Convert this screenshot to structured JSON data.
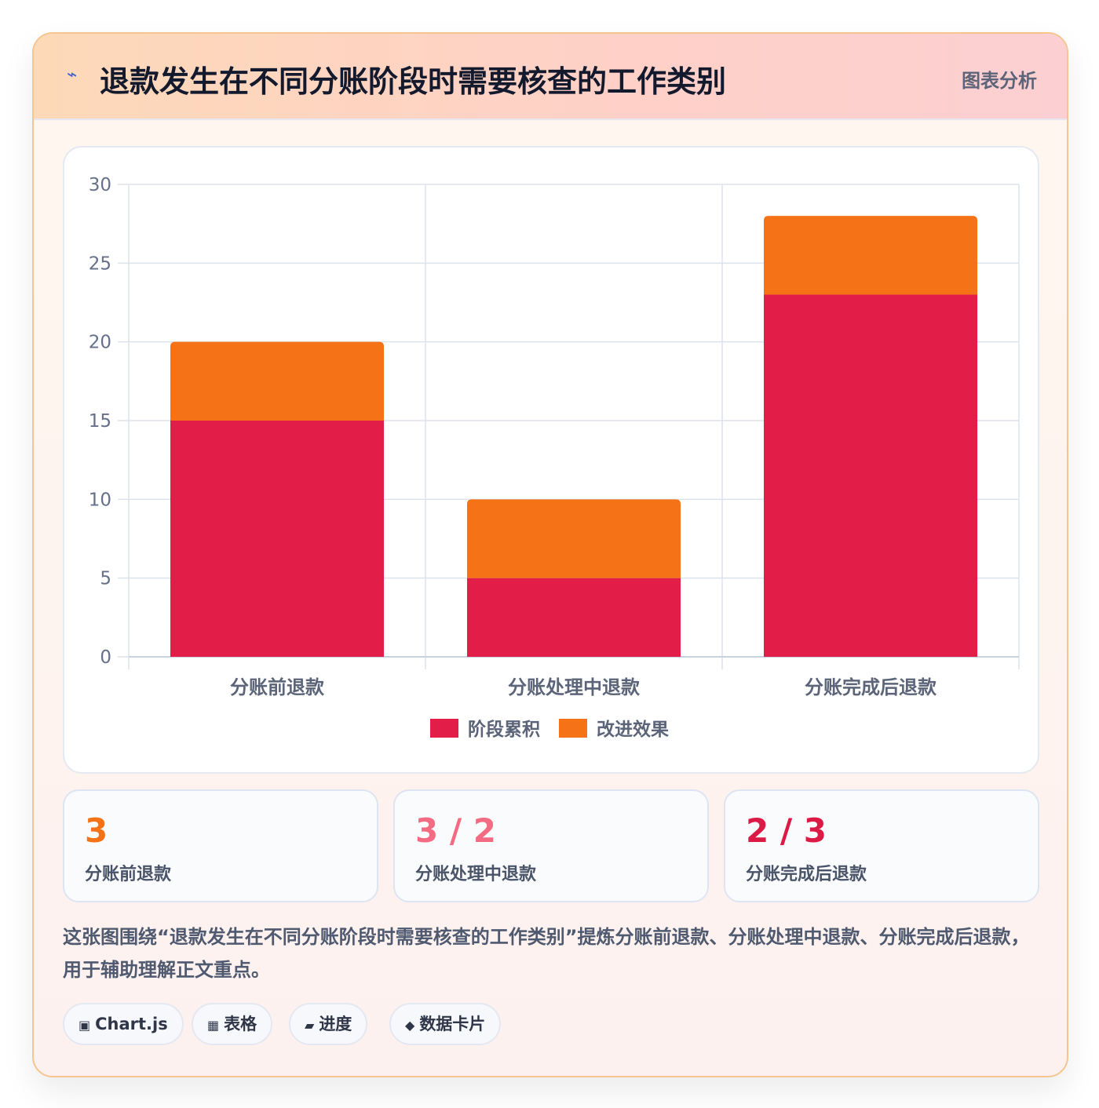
{
  "header": {
    "icon": "lightning-icon",
    "title": "退款发生在不同分账阶段时需要核查的工作类别",
    "right_label": "图表分析"
  },
  "colors": {
    "series_1": "#e11d48",
    "series_2": "#f57316",
    "stat_1": "#f57316",
    "stat_2": "#f26b82",
    "stat_3": "#dc1a46"
  },
  "chart_data": {
    "type": "bar",
    "stacked": true,
    "categories": [
      "分账前退款",
      "分账处理中退款",
      "分账完成后退款"
    ],
    "series": [
      {
        "name": "阶段累积",
        "values": [
          15,
          5,
          23
        ]
      },
      {
        "name": "改进效果",
        "values": [
          5,
          5,
          5
        ]
      }
    ],
    "ylim": [
      0,
      30
    ],
    "yticks": [
      0,
      5,
      10,
      15,
      20,
      25,
      30
    ],
    "grid": true,
    "legend": "bottom"
  },
  "stats": [
    {
      "value": "3",
      "label": "分账前退款"
    },
    {
      "value": "3 / 2",
      "label": "分账处理中退款"
    },
    {
      "value": "2 / 3",
      "label": "分账完成后退款"
    }
  ],
  "description": "这张图围绕“退款发生在不同分账阶段时需要核查的工作类别”提炼分账前退款、分账处理中退款、分账完成后退款，用于辅助理解正文重点。",
  "tags": [
    {
      "icon": "chip-icon",
      "glyph": "▣",
      "label": "Chart.js"
    },
    {
      "icon": "table-icon",
      "glyph": "▦",
      "label": "表格"
    },
    {
      "icon": "progress-icon",
      "glyph": "▰",
      "label": "进度"
    },
    {
      "icon": "diamond-icon",
      "glyph": "◆",
      "label": "数据卡片"
    }
  ]
}
